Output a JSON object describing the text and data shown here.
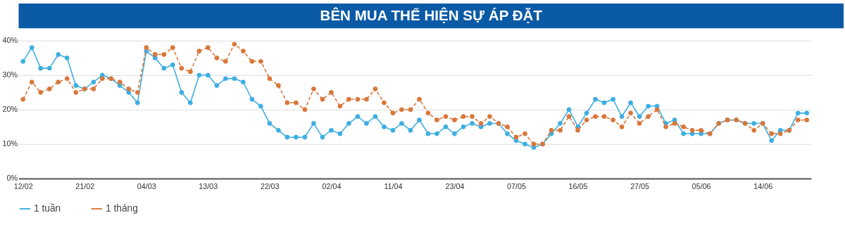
{
  "chart_data": {
    "type": "line",
    "title": "BÊN MUA THỂ HIỆN SỰ ÁP ĐẶT",
    "categories": [
      "12/02",
      null,
      null,
      null,
      null,
      null,
      null,
      "21/02",
      null,
      null,
      null,
      null,
      null,
      null,
      "04/03",
      null,
      null,
      null,
      null,
      null,
      null,
      "13/03",
      null,
      null,
      null,
      null,
      null,
      null,
      "22/03",
      null,
      null,
      null,
      null,
      null,
      null,
      "02/04",
      null,
      null,
      null,
      null,
      null,
      null,
      "11/04",
      null,
      null,
      null,
      null,
      null,
      null,
      "23/04",
      null,
      null,
      null,
      null,
      null,
      null,
      "07/05",
      null,
      null,
      null,
      null,
      null,
      null,
      "16/05",
      null,
      null,
      null,
      null,
      null,
      null,
      "27/05",
      null,
      null,
      null,
      null,
      null,
      null,
      "05/06",
      null,
      null,
      null,
      null,
      null,
      null,
      "14/06",
      null,
      null,
      null,
      null,
      null
    ],
    "series": [
      {
        "name": "1 tuần",
        "color": "#3daee2",
        "line_style": "solid",
        "values": [
          34,
          38,
          32,
          32,
          36,
          35,
          27,
          26,
          28,
          30,
          29,
          27,
          25,
          22,
          37,
          35,
          32,
          33,
          25,
          22,
          30,
          30,
          27,
          29,
          29,
          28,
          23,
          21,
          16,
          14,
          12,
          12,
          12,
          16,
          12,
          14,
          13,
          16,
          18,
          16,
          18,
          15,
          14,
          16,
          14,
          17,
          13,
          13,
          15,
          13,
          15,
          16,
          15,
          16,
          16,
          13,
          11,
          10,
          9,
          10,
          13,
          16,
          20,
          15,
          19,
          23,
          22,
          23,
          18,
          22,
          18,
          21,
          21,
          16,
          17,
          13,
          13,
          13,
          13,
          16,
          17,
          17,
          16,
          16,
          16,
          11,
          14,
          14,
          19,
          19
        ]
      },
      {
        "name": "1 tháng",
        "color": "#d9773a",
        "line_style": "dashed",
        "values": [
          23,
          28,
          25,
          26,
          28,
          29,
          25,
          26,
          26,
          29,
          29,
          28,
          26,
          25,
          38,
          36,
          36,
          38,
          32,
          31,
          37,
          38,
          35,
          34,
          39,
          37,
          34,
          34,
          29,
          27,
          22,
          22,
          20,
          26,
          23,
          25,
          21,
          23,
          23,
          23,
          26,
          22,
          19,
          20,
          20,
          23,
          19,
          17,
          18,
          17,
          18,
          18,
          16,
          18,
          16,
          15,
          12,
          13,
          10,
          10,
          14,
          14,
          18,
          14,
          17,
          18,
          18,
          17,
          15,
          19,
          16,
          18,
          20,
          15,
          16,
          15,
          14,
          14,
          13,
          16,
          17,
          17,
          16,
          14,
          16,
          13,
          13,
          14,
          17,
          17
        ]
      }
    ],
    "ylim": [
      0,
      40
    ],
    "yticks": [
      {
        "value": 0,
        "label": "0%"
      },
      {
        "value": 10,
        "label": "10%"
      },
      {
        "value": 20,
        "label": "20%"
      },
      {
        "value": 30,
        "label": "30%"
      },
      {
        "value": 40,
        "label": "40%"
      }
    ],
    "grid": "y",
    "legend": "bottom",
    "marker": "circle"
  }
}
